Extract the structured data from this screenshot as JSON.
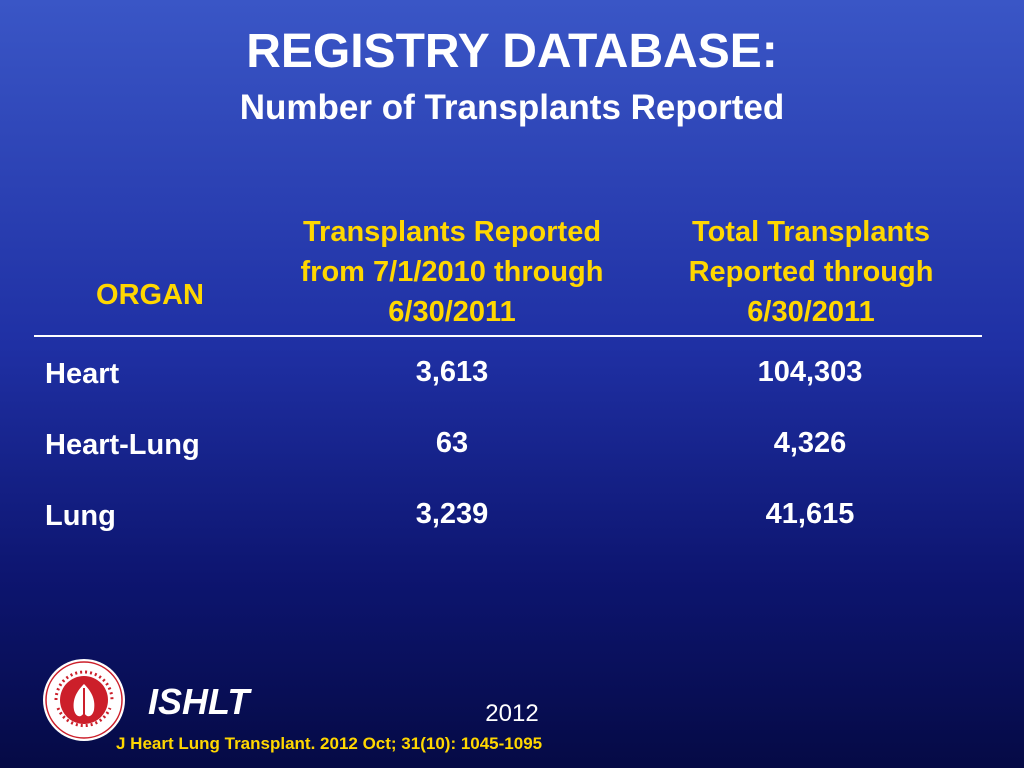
{
  "header": {
    "title": "REGISTRY DATABASE:",
    "subtitle": "Number of Transplants Reported"
  },
  "table": {
    "columns": [
      "ORGAN",
      "Transplants Reported from 7/1/2010 through 6/30/2011",
      "Total Transplants Reported through 6/30/2011"
    ],
    "column_lines": {
      "period": [
        "Transplants Reported",
        "from 7/1/2010 through",
        "6/30/2011"
      ],
      "total": [
        "Total Transplants",
        "Reported through",
        "6/30/2011"
      ]
    },
    "rows": [
      {
        "organ": "Heart",
        "period": "3,613",
        "total": "104,303"
      },
      {
        "organ": "Heart-Lung",
        "period": "63",
        "total": "4,326"
      },
      {
        "organ": "Lung",
        "period": "3,239",
        "total": "41,615"
      }
    ]
  },
  "footer": {
    "org": "ISHLT",
    "year": "2012",
    "citation": "J Heart Lung Transplant.  2012 Oct; 31(10): 1045-1095",
    "logo_text": "INTERNATIONAL SOCIETY FOR HEART & LUNG TRANSPLANTATION"
  },
  "colors": {
    "header_text": "#ffd700",
    "body_text": "#ffffff",
    "logo_red": "#cc1f2a"
  }
}
